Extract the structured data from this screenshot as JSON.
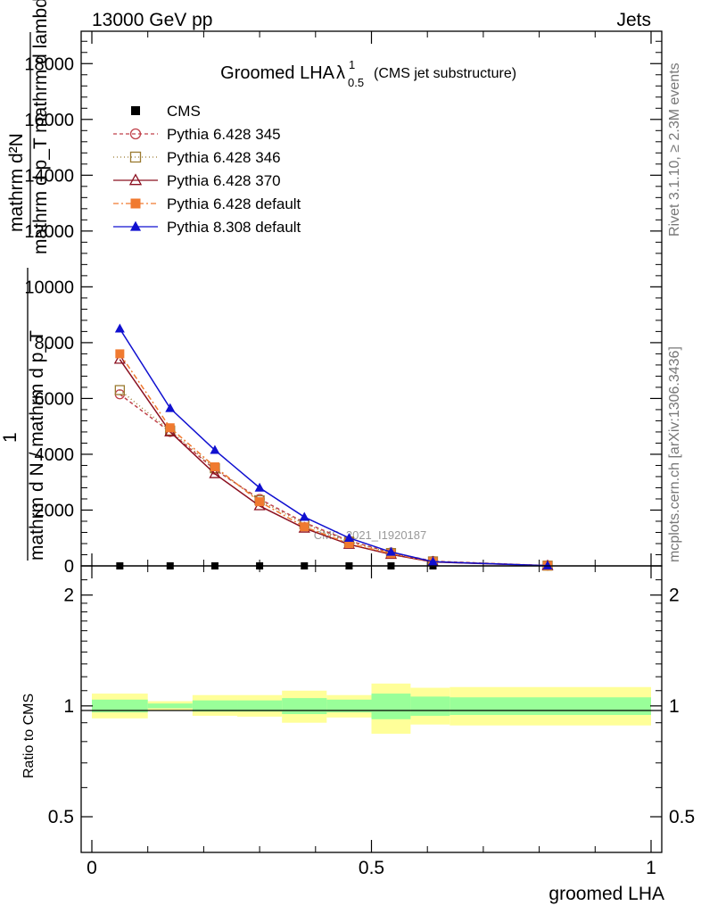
{
  "header": {
    "left": "13000 GeV pp",
    "right": "Jets"
  },
  "side_labels": {
    "rivet": "Rivet 3.1.10, ≥ 2.3M events",
    "mcplots": "mcplots.cern.ch [arXiv:1306.3436]"
  },
  "chart_data": [
    {
      "type": "line",
      "title_main": "Groomed LHA",
      "title_lambda": "λ",
      "title_sup": "1",
      "title_sub": "0.5",
      "title_note": "(CMS jet substructure)",
      "ylabel_num": "mathrm d²N",
      "ylabel_den": "mathrm d p_T mathrm d lambda",
      "ylabel_num2": "1",
      "ylabel_den2": "mathrm d N / mathrm d p_T",
      "watermark": "CMS_2021_I1920187",
      "ylim": [
        0,
        19000
      ],
      "yticks": [
        0,
        2000,
        4000,
        6000,
        8000,
        10000,
        12000,
        14000,
        16000,
        18000
      ],
      "x": [
        0.05,
        0.14,
        0.22,
        0.3,
        0.38,
        0.46,
        0.535,
        0.61,
        0.815
      ],
      "series": [
        {
          "name": "CMS",
          "color": "#000000",
          "marker": "square-filled",
          "dash": "none",
          "values": [
            0,
            0,
            0,
            0,
            0,
            0,
            0,
            0,
            0
          ]
        },
        {
          "name": "Pythia 6.428 345",
          "color": "#c0404a",
          "marker": "circle-open",
          "dash": "4,3",
          "values": [
            6150,
            4800,
            3450,
            2400,
            1550,
            900,
            480,
            170,
            10
          ]
        },
        {
          "name": "Pythia 6.428 346",
          "color": "#9a7a30",
          "marker": "square-open",
          "dash": "1,3",
          "values": [
            6300,
            4850,
            3500,
            2350,
            1500,
            870,
            460,
            160,
            10
          ]
        },
        {
          "name": "Pythia 6.428 370",
          "color": "#8b1020",
          "marker": "triangle-open",
          "dash": "none",
          "values": [
            7400,
            4800,
            3300,
            2150,
            1350,
            770,
            410,
            140,
            10
          ]
        },
        {
          "name": "Pythia 6.428 default",
          "color": "#f07a30",
          "marker": "square-filled",
          "dash": "6,3,2,3",
          "values": [
            7600,
            4950,
            3550,
            2300,
            1400,
            800,
            440,
            150,
            10
          ]
        },
        {
          "name": "Pythia 8.308 default",
          "color": "#1010d0",
          "marker": "triangle-filled",
          "dash": "none",
          "values": [
            8500,
            5650,
            4150,
            2800,
            1750,
            1000,
            500,
            150,
            10
          ]
        }
      ]
    },
    {
      "type": "area",
      "ylabel": "Ratio to CMS",
      "xlabel": "groomed LHA",
      "xlim": [
        0,
        1
      ],
      "xticks": [
        "0",
        "0.5",
        "1"
      ],
      "xtick_values": [
        0,
        0.5,
        1
      ],
      "ylim": [
        0.4,
        2.4
      ],
      "log_y": true,
      "yticks": [
        "0.5",
        "1",
        "2"
      ],
      "ytick_values": [
        0.5,
        1,
        2
      ],
      "bins": [
        {
          "lo": 0.0,
          "hi": 0.1,
          "inner": [
            0.96,
            1.04
          ],
          "outer": [
            0.925,
            1.08
          ]
        },
        {
          "lo": 0.1,
          "hi": 0.18,
          "inner": [
            0.985,
            1.015
          ],
          "outer": [
            0.97,
            1.03
          ]
        },
        {
          "lo": 0.18,
          "hi": 0.26,
          "inner": [
            0.965,
            1.035
          ],
          "outer": [
            0.94,
            1.07
          ]
        },
        {
          "lo": 0.26,
          "hi": 0.34,
          "inner": [
            0.965,
            1.035
          ],
          "outer": [
            0.935,
            1.07
          ]
        },
        {
          "lo": 0.34,
          "hi": 0.42,
          "inner": [
            0.95,
            1.05
          ],
          "outer": [
            0.9,
            1.1
          ]
        },
        {
          "lo": 0.42,
          "hi": 0.5,
          "inner": [
            0.96,
            1.04
          ],
          "outer": [
            0.93,
            1.07
          ]
        },
        {
          "lo": 0.5,
          "hi": 0.57,
          "inner": [
            0.92,
            1.08
          ],
          "outer": [
            0.84,
            1.15
          ]
        },
        {
          "lo": 0.57,
          "hi": 0.64,
          "inner": [
            0.94,
            1.06
          ],
          "outer": [
            0.89,
            1.12
          ]
        },
        {
          "lo": 0.64,
          "hi": 1.0,
          "inner": [
            0.945,
            1.055
          ],
          "outer": [
            0.885,
            1.125
          ]
        }
      ]
    }
  ]
}
